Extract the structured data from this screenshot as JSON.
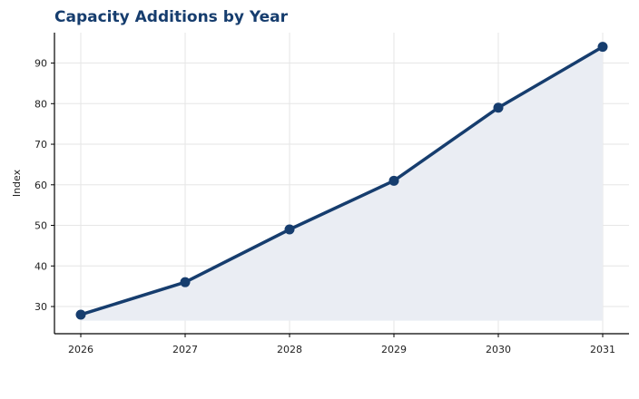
{
  "chart_data": {
    "type": "line",
    "title": "Capacity Additions by Year",
    "xlabel": "",
    "ylabel": "Index",
    "x": [
      "2026",
      "2027",
      "2028",
      "2029",
      "2030",
      "2031"
    ],
    "series": [
      {
        "values": [
          28,
          36,
          49,
          61,
          79,
          94
        ]
      }
    ],
    "ylim": [
      23.3,
      97.5
    ],
    "yticks": [
      30,
      40,
      50,
      60,
      70,
      80,
      90
    ],
    "area_fill": true,
    "area_base": 26.5,
    "grid": true,
    "legend": "none",
    "colors": {
      "line": "#163d6e",
      "fill": "#eaedf3",
      "grid": "#e6e6e6",
      "axis": "#000000",
      "title": "#163d6e"
    }
  }
}
